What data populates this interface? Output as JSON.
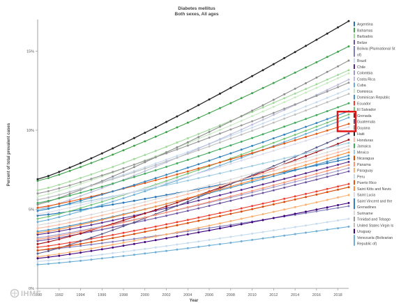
{
  "chart_data": {
    "type": "line",
    "title": "Diabetes mellitus",
    "subtitle": "Both sexes, All ages",
    "xlabel": "Year",
    "ylabel": "Percent of total prevalent cases",
    "xlim": [
      1990,
      2019
    ],
    "ylim": [
      0,
      17
    ],
    "x_ticks": [
      "1990",
      "1992",
      "1994",
      "1996",
      "1998",
      "2000",
      "2002",
      "2004",
      "2006",
      "2008",
      "2010",
      "2012",
      "2014",
      "2016",
      "2018"
    ],
    "y_ticks": [
      {
        "value": 0,
        "label": "0%"
      },
      {
        "value": 5,
        "label": "5%"
      },
      {
        "value": 10,
        "label": "10%"
      },
      {
        "value": 15,
        "label": "15%"
      }
    ],
    "grid": false,
    "legend_position": "right",
    "highlight_box_color": "#e01818",
    "highlight_box_items": [
      "Grenada",
      "Guatemala",
      "Guyana"
    ],
    "series": [
      {
        "name": "Argentina",
        "color": "#2171b5",
        "start": 4.6,
        "end": 8.2
      },
      {
        "name": "Bahamas",
        "color": "#3fa14a",
        "start": 6.8,
        "end": 15.3
      },
      {
        "name": "Barbados",
        "color": "#a1d99b",
        "start": 6.2,
        "end": 13.8
      },
      {
        "name": "Belize",
        "color": "#6a51a3",
        "start": 3.0,
        "end": 7.4
      },
      {
        "name": "Bolivia (Plurinational State of)",
        "color": "#807dba",
        "start": 2.4,
        "end": 5.2
      },
      {
        "name": "Brazil",
        "color": "#c6dbef",
        "start": 5.6,
        "end": 12.6
      },
      {
        "name": "Chile",
        "color": "#54278f",
        "start": 3.4,
        "end": 8.0
      },
      {
        "name": "Colombia",
        "color": "#9e9ac8",
        "start": 3.2,
        "end": 7.6
      },
      {
        "name": "Costa Rica",
        "color": "#bcbddc",
        "start": 5.0,
        "end": 13.2
      },
      {
        "name": "Cuba",
        "color": "#6baed6",
        "start": 4.2,
        "end": 10.8
      },
      {
        "name": "Dominica",
        "color": "#c7e9c0",
        "start": 5.8,
        "end": 13.6
      },
      {
        "name": "Dominican Republic",
        "color": "#4292c6",
        "start": 3.6,
        "end": 8.4
      },
      {
        "name": "Ecuador",
        "color": "#ef3b2c",
        "start": 2.6,
        "end": 6.6
      },
      {
        "name": "El Salvador",
        "color": "#74c476",
        "start": 4.4,
        "end": 11.0
      },
      {
        "name": "Grenada",
        "color": "#a50f15",
        "start": 2.8,
        "end": 9.4
      },
      {
        "name": "Guatemala",
        "color": "#5a5a8a",
        "start": 2.2,
        "end": 9.8
      },
      {
        "name": "Guyana",
        "color": "#8c8c8c",
        "start": 5.3,
        "end": 14.4
      },
      {
        "name": "Haiti",
        "color": "#252525",
        "start": 6.9,
        "end": 16.9
      },
      {
        "name": "Honduras",
        "color": "#fcbba1",
        "start": 3.8,
        "end": 8.8
      },
      {
        "name": "Jamaica",
        "color": "#41ab5d",
        "start": 5.4,
        "end": 11.7
      },
      {
        "name": "Mexico",
        "color": "#9ecae1",
        "start": 5.0,
        "end": 9.2
      },
      {
        "name": "Nicaragua",
        "color": "#d94801",
        "start": 2.4,
        "end": 6.4
      },
      {
        "name": "Panama",
        "color": "#fc9272",
        "start": 3.1,
        "end": 7.8
      },
      {
        "name": "Paraguay",
        "color": "#fdae6b",
        "start": 2.0,
        "end": 5.9
      },
      {
        "name": "Peru",
        "color": "#c6dbef",
        "start": 1.7,
        "end": 4.4
      },
      {
        "name": "Puerto Rico",
        "color": "#e6550d",
        "start": 5.1,
        "end": 10.4
      },
      {
        "name": "Saint Kitts and Nevis",
        "color": "#fd8d3c",
        "start": 3.5,
        "end": 8.6
      },
      {
        "name": "Saint Lucia",
        "color": "#dadaeb",
        "start": 4.7,
        "end": 10.2
      },
      {
        "name": "Saint Vincent and the Grenadines",
        "color": "#3182bd",
        "start": 4.9,
        "end": 11.2
      },
      {
        "name": "Suriname",
        "color": "#d9d9d9",
        "start": 4.0,
        "end": 9.0
      },
      {
        "name": "Trinidad and Tobago",
        "color": "#969696",
        "start": 6.0,
        "end": 13.0
      },
      {
        "name": "United States Virgin Islands",
        "color": "#bdbdbd",
        "start": 5.6,
        "end": 12.3
      },
      {
        "name": "Uruguay",
        "color": "#3f007d",
        "start": 1.9,
        "end": 5.4
      },
      {
        "name": "Venezuela (Bolivarian Republic of)",
        "color": "#6baed6",
        "start": 1.5,
        "end": 3.9
      }
    ],
    "legend_labels": [
      [
        "Argentina"
      ],
      [
        "Bahamas"
      ],
      [
        "Barbados"
      ],
      [
        "Belize"
      ],
      [
        "Bolivia (Plurinational St",
        "of)"
      ],
      [
        "Brazil"
      ],
      [
        "Chile"
      ],
      [
        "Colombia"
      ],
      [
        "Costa Rica"
      ],
      [
        "Cuba"
      ],
      [
        "Dominica"
      ],
      [
        "Dominican Republic"
      ],
      [
        "Ecuador"
      ],
      [
        "El Salvador"
      ],
      [
        "Grenada"
      ],
      [
        "Guatemala"
      ],
      [
        "Guyana"
      ],
      [
        "Haiti"
      ],
      [
        "Honduras"
      ],
      [
        "Jamaica"
      ],
      [
        "Mexico"
      ],
      [
        "Nicaragua"
      ],
      [
        "Panama"
      ],
      [
        "Paraguay"
      ],
      [
        "Peru"
      ],
      [
        "Puerto Rico"
      ],
      [
        "Saint Kitts and Nevis"
      ],
      [
        "Saint Lucia"
      ],
      [
        "Saint Vincent and the",
        "Grenadines"
      ],
      [
        "Suriname"
      ],
      [
        "Trinidad and Tobago"
      ],
      [
        "United States Virgin Is"
      ],
      [
        "Uruguay"
      ],
      [
        "Venezuela (Bolivarian",
        "Republic of)"
      ]
    ]
  },
  "logo": {
    "text": "IHME",
    "icon": "ihme-logo-icon"
  }
}
